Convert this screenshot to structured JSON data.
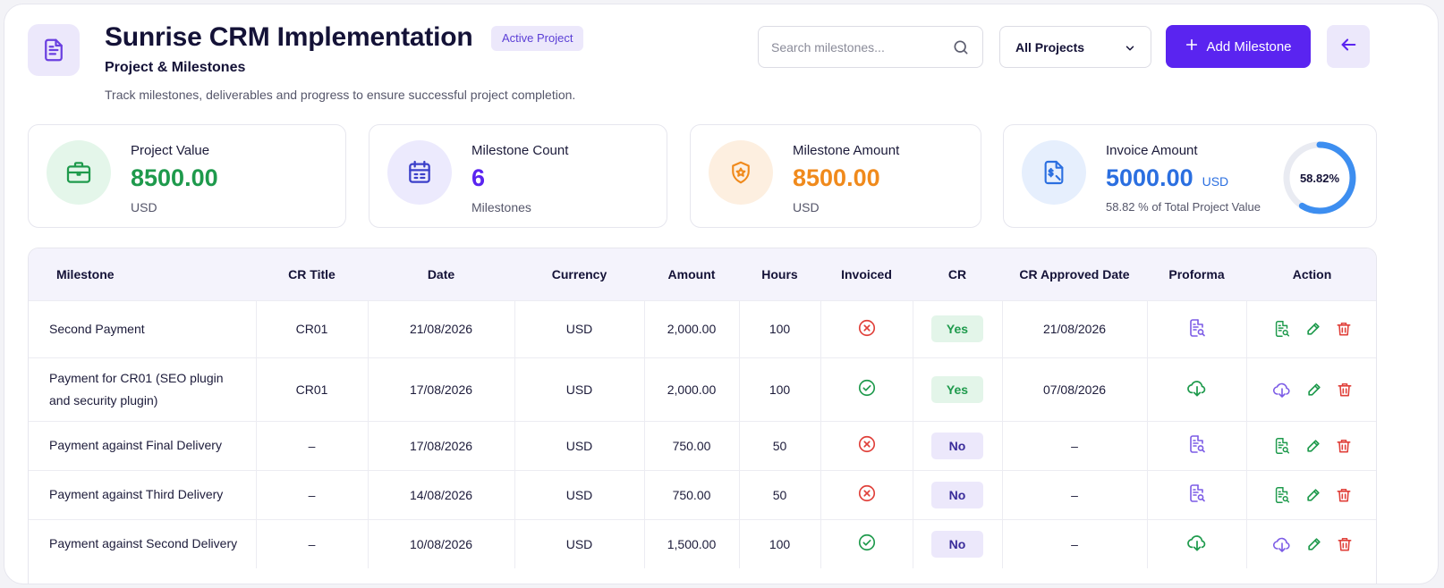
{
  "header": {
    "title": "Sunrise CRM Implementation",
    "status_badge": "Active Project",
    "subtitle": "Project & Milestones",
    "description": "Track milestones, deliverables and progress to ensure successful project completion.",
    "search_placeholder": "Search milestones...",
    "project_filter": "All Projects",
    "add_button": "Add Milestone"
  },
  "stats": {
    "project_value": {
      "label": "Project Value",
      "value": "8500.00",
      "sub": "USD"
    },
    "milestone_count": {
      "label": "Milestone Count",
      "value": "6",
      "sub": "Milestones"
    },
    "milestone_amount": {
      "label": "Milestone Amount",
      "value": "8500.00",
      "sub": "USD"
    },
    "invoice_amount": {
      "label": "Invoice Amount",
      "value": "5000.00",
      "unit": "USD",
      "sub": "58.82 % of Total Project Value",
      "percent_text": "58.82%",
      "percent": 58.82
    }
  },
  "colors": {
    "accent": "#5a24f0",
    "green": "#1e9a4c",
    "orange": "#f08a1c",
    "blue": "#2b6fe0",
    "red": "#e0403a"
  },
  "table": {
    "columns": [
      "Milestone",
      "CR Title",
      "Date",
      "Currency",
      "Amount",
      "Hours",
      "Invoiced",
      "CR",
      "CR Approved Date",
      "Proforma",
      "Action"
    ],
    "rows": [
      {
        "milestone": "Second Payment",
        "cr_title": "CR01",
        "date": "21/08/2026",
        "currency": "USD",
        "amount": "2,000.00",
        "hours": "100",
        "invoiced": false,
        "cr": "Yes",
        "cr_approved_date": "21/08/2026",
        "proforma": "document-search-icon"
      },
      {
        "milestone": "Payment for CR01 (SEO plugin and security plugin)",
        "cr_title": "CR01",
        "date": "17/08/2026",
        "currency": "USD",
        "amount": "2,000.00",
        "hours": "100",
        "invoiced": true,
        "cr": "Yes",
        "cr_approved_date": "07/08/2026",
        "proforma": "cloud-download-icon"
      },
      {
        "milestone": "Payment against Final Delivery",
        "cr_title": "–",
        "date": "17/08/2026",
        "currency": "USD",
        "amount": "750.00",
        "hours": "50",
        "invoiced": false,
        "cr": "No",
        "cr_approved_date": "–",
        "proforma": "document-search-icon"
      },
      {
        "milestone": "Payment against Third Delivery",
        "cr_title": "–",
        "date": "14/08/2026",
        "currency": "USD",
        "amount": "750.00",
        "hours": "50",
        "invoiced": false,
        "cr": "No",
        "cr_approved_date": "–",
        "proforma": "document-search-icon"
      },
      {
        "milestone": "Payment against Second Delivery",
        "cr_title": "–",
        "date": "10/08/2026",
        "currency": "USD",
        "amount": "1,500.00",
        "hours": "100",
        "invoiced": true,
        "cr": "No",
        "cr_approved_date": "–",
        "proforma": "cloud-download-icon"
      }
    ]
  }
}
